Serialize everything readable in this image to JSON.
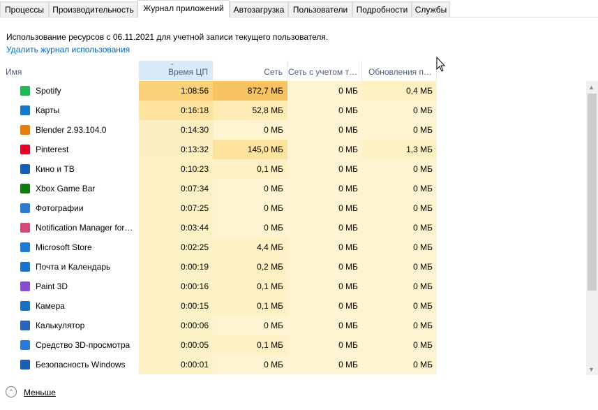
{
  "tabs": [
    "Процессы",
    "Производительность",
    "Журнал приложений",
    "Автозагрузка",
    "Пользователи",
    "Подробности",
    "Службы"
  ],
  "info": {
    "usage_text": "Использование ресурсов с 06.11.2021 для учетной записи текущего пользователя.",
    "delete_link": "Удалить журнал использования"
  },
  "table": {
    "columns": [
      "Имя",
      "Время ЦП",
      "Сеть",
      "Сеть с учетом т…",
      "Обновления п…"
    ],
    "rows": [
      [
        "Spotify",
        "1:08:56",
        "872,7 МБ",
        "0 МБ",
        "0,4 МБ"
      ],
      [
        "Карты",
        "0:16:18",
        "52,8 МБ",
        "0 МБ",
        "0 МБ"
      ],
      [
        "Blender 2.93.104.0",
        "0:14:30",
        "0 МБ",
        "0 МБ",
        "0 МБ"
      ],
      [
        "Pinterest",
        "0:13:32",
        "145,0 МБ",
        "0 МБ",
        "1,3 МБ"
      ],
      [
        "Кино и ТВ",
        "0:10:23",
        "0,1 МБ",
        "0 МБ",
        "0 МБ"
      ],
      [
        "Xbox Game Bar",
        "0:07:34",
        "0 МБ",
        "0 МБ",
        "0 МБ"
      ],
      [
        "Фотографии",
        "0:07:25",
        "0 МБ",
        "0 МБ",
        "0 МБ"
      ],
      [
        "Notification Manager for…",
        "0:03:44",
        "0 МБ",
        "0 МБ",
        "0 МБ"
      ],
      [
        "Microsoft Store",
        "0:02:25",
        "4,4 МБ",
        "0 МБ",
        "0 МБ"
      ],
      [
        "Почта и Календарь",
        "0:00:19",
        "0,2 МБ",
        "0 МБ",
        "0 МБ"
      ],
      [
        "Paint 3D",
        "0:00:16",
        "0,1 МБ",
        "0 МБ",
        "0 МБ"
      ],
      [
        "Камера",
        "0:00:15",
        "0,1 МБ",
        "0 МБ",
        "0 МБ"
      ],
      [
        "Калькулятор",
        "0:00:06",
        "0 МБ",
        "0 МБ",
        "0 МБ"
      ],
      [
        "Средство 3D-просмотра",
        "0:00:05",
        "0,1 МБ",
        "0 МБ",
        "0 МБ"
      ],
      [
        "Безопасность Windows",
        "0:00:01",
        "0 МБ",
        "0 МБ",
        "0 МБ"
      ]
    ]
  },
  "footer": {
    "less": "Меньше"
  }
}
